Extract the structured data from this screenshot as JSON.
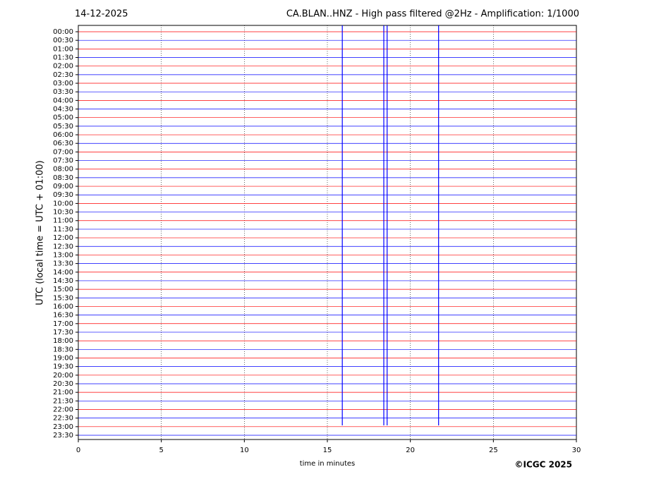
{
  "chart_data": {
    "type": "helicorder",
    "date": "14-12-2025",
    "title": "CA.BLAN..HNZ - High pass filtered @2Hz - Amplification: 1/1000",
    "xlabel": "time in minutes",
    "ylabel": "UTC (local time = UTC + 01:00)",
    "credit": "©ICGC 2025",
    "categories": [
      "00:00",
      "00:30",
      "01:00",
      "01:30",
      "02:00",
      "02:30",
      "03:00",
      "03:30",
      "04:00",
      "04:30",
      "05:00",
      "05:30",
      "06:00",
      "06:30",
      "07:00",
      "07:30",
      "08:00",
      "08:30",
      "09:00",
      "09:30",
      "10:00",
      "10:30",
      "11:00",
      "11:30",
      "12:00",
      "12:30",
      "13:00",
      "13:30",
      "14:00",
      "14:30",
      "15:00",
      "15:30",
      "16:00",
      "16:30",
      "17:00",
      "17:30",
      "18:00",
      "18:30",
      "19:00",
      "19:30",
      "20:00",
      "20:30",
      "21:00",
      "21:30",
      "22:00",
      "22:30",
      "23:00",
      "23:30"
    ],
    "colors": [
      "#ff0000",
      "#0000ff"
    ],
    "xlim": [
      0,
      30
    ],
    "xticks": [
      0,
      5,
      10,
      15,
      20,
      25,
      30
    ],
    "grid": true,
    "spikes": {
      "color": "#0000ff",
      "x": [
        15.9,
        18.4,
        18.6,
        21.7
      ]
    }
  }
}
